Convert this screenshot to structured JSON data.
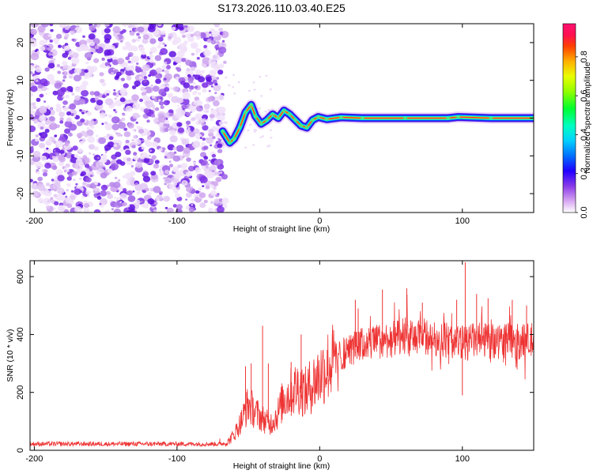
{
  "chart_data": [
    {
      "type": "heatmap",
      "title": "S173.2026.110.03.40.E25",
      "xlabel": "Height of straight line (km)",
      "ylabel": "Frequency (Hz)",
      "xlim": [
        -203,
        150
      ],
      "ylim": [
        -25,
        25
      ],
      "xticks": [
        -200,
        -100,
        0,
        100
      ],
      "xtick_labels": [
        "-200",
        "-100",
        "0",
        "100"
      ],
      "yticks": [
        -20,
        -10,
        0,
        10,
        20
      ],
      "ytick_labels": [
        "-20",
        "-10",
        "0",
        "10",
        "20"
      ],
      "colorbar": {
        "label": "Normalized spectral amplitude",
        "range": [
          0,
          0.97
        ],
        "ticks": [
          0.0,
          0.2,
          0.4,
          0.6,
          0.8
        ],
        "tick_labels": [
          "0.0",
          "0.2",
          "0.4",
          "0.6",
          "0.8"
        ],
        "colormap": [
          "#ffffff",
          "#e9c9f5",
          "#9a5ae8",
          "#5a10e0",
          "#0000ff",
          "#00b0ff",
          "#00ffe8",
          "#00ff40",
          "#a0ff00",
          "#ffff00",
          "#ffb000",
          "#ff3000",
          "#ff1060"
        ]
      },
      "noise_region_x": [
        -203,
        -66
      ],
      "ridge": [
        {
          "x": -68,
          "y": -3.5
        },
        {
          "x": -63,
          "y": -6.5
        },
        {
          "x": -60,
          "y": -5.5
        },
        {
          "x": -56,
          "y": -2.5
        },
        {
          "x": -52,
          "y": 1.5
        },
        {
          "x": -48,
          "y": 3.5
        },
        {
          "x": -45,
          "y": 0.5
        },
        {
          "x": -41,
          "y": -1.5
        },
        {
          "x": -37,
          "y": -0.5
        },
        {
          "x": -33,
          "y": 1
        },
        {
          "x": -29,
          "y": 0
        },
        {
          "x": -25,
          "y": 2
        },
        {
          "x": -21,
          "y": 1
        },
        {
          "x": -17,
          "y": -0.5
        },
        {
          "x": -13,
          "y": -2
        },
        {
          "x": -9,
          "y": -2.5
        },
        {
          "x": -5,
          "y": -0.5
        },
        {
          "x": -1,
          "y": 0.3
        },
        {
          "x": 5,
          "y": -0.3
        },
        {
          "x": 15,
          "y": 0.2
        },
        {
          "x": 30,
          "y": 0
        },
        {
          "x": 60,
          "y": 0
        },
        {
          "x": 90,
          "y": 0
        },
        {
          "x": 97,
          "y": 0.3
        },
        {
          "x": 120,
          "y": 0
        },
        {
          "x": 150,
          "y": 0
        }
      ]
    },
    {
      "type": "line",
      "xlabel": "Height of straight line (km)",
      "ylabel": "SNR (10 * v/v)",
      "xlim": [
        -203,
        150
      ],
      "ylim": [
        0,
        655
      ],
      "xticks": [
        -200,
        -100,
        0,
        100
      ],
      "xtick_labels": [
        "-200",
        "-100",
        "0",
        "100"
      ],
      "yticks": [
        0,
        200,
        400,
        600
      ],
      "ytick_labels": [
        "0",
        "200",
        "400",
        "600"
      ],
      "color": "#ee3333",
      "series": [
        {
          "name": "SNR envelope",
          "x": [
            -203,
            -180,
            -150,
            -120,
            -90,
            -70,
            -65,
            -60,
            -55,
            -50,
            -45,
            -40,
            -35,
            -30,
            -25,
            -20,
            -15,
            -10,
            -5,
            0,
            5,
            10,
            15,
            20,
            25,
            30,
            40,
            50,
            60,
            70,
            80,
            90,
            100,
            110,
            120,
            130,
            140,
            150
          ],
          "y": [
            22,
            22,
            22,
            22,
            22,
            22,
            25,
            55,
            100,
            160,
            130,
            110,
            90,
            120,
            180,
            200,
            220,
            200,
            230,
            260,
            290,
            310,
            330,
            345,
            355,
            365,
            375,
            385,
            385,
            390,
            385,
            380,
            370,
            380,
            375,
            380,
            375,
            380
          ]
        }
      ],
      "spikes": [
        {
          "x": -70,
          "y": 40
        },
        {
          "x": -52,
          "y": 290
        },
        {
          "x": -48,
          "y": 300
        },
        {
          "x": -40,
          "y": 430
        },
        {
          "x": -36,
          "y": 300
        },
        {
          "x": -20,
          "y": 305
        },
        {
          "x": -13,
          "y": 400
        },
        {
          "x": 25,
          "y": 520
        },
        {
          "x": 27,
          "y": 490
        },
        {
          "x": 44,
          "y": 555
        },
        {
          "x": 61,
          "y": 560
        },
        {
          "x": 72,
          "y": 510
        },
        {
          "x": 96,
          "y": 520
        },
        {
          "x": 100,
          "y": 190
        },
        {
          "x": 102,
          "y": 650
        },
        {
          "x": 110,
          "y": 540
        },
        {
          "x": 118,
          "y": 525
        },
        {
          "x": 135,
          "y": 520
        },
        {
          "x": 145,
          "y": 500
        }
      ]
    }
  ]
}
